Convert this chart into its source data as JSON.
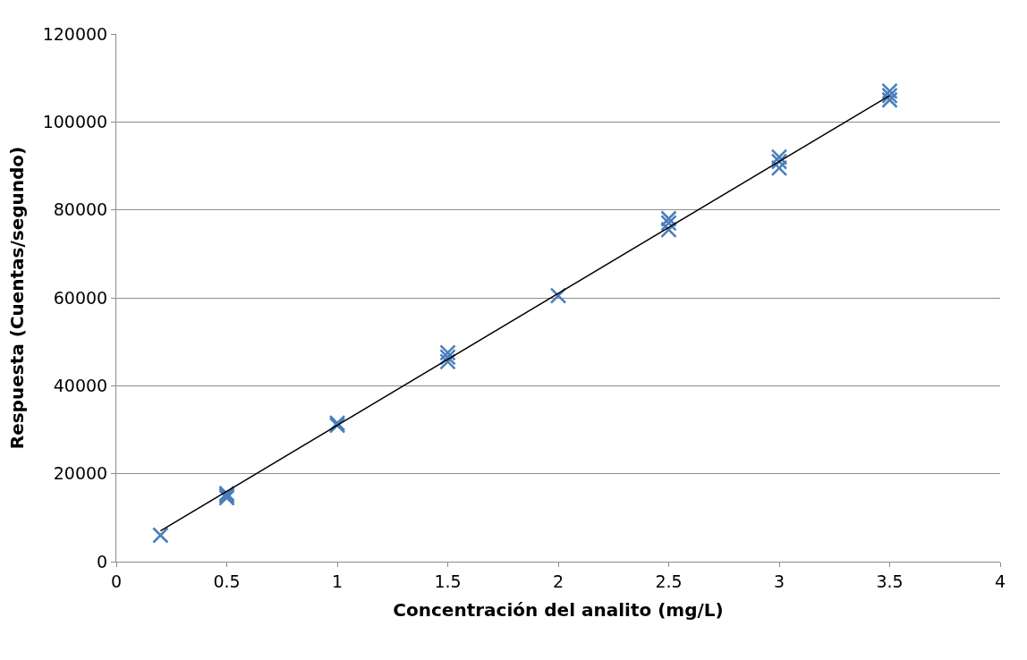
{
  "chart_data": {
    "type": "scatter",
    "xlabel": "Concentración del analito (mg/L)",
    "ylabel": "Respuesta (Cuentas/segundo)",
    "series": [
      {
        "color": "#4a7ebb",
        "marker": "cross",
        "x": [
          0.2,
          0.5,
          0.5,
          0.5,
          1,
          1,
          1.5,
          1.5,
          1.5,
          2,
          2.5,
          2.5,
          2.5,
          3,
          3,
          3,
          3.5,
          3.5,
          3.5
        ],
        "values": [
          6000,
          14500,
          15000,
          15500,
          31000,
          31500,
          45500,
          46500,
          47500,
          60500,
          75500,
          77000,
          78000,
          89500,
          91000,
          92000,
          105000,
          106000,
          107000
        ]
      },
      {
        "type": "line",
        "color": "#000000",
        "marker": "none",
        "x": [
          0.2,
          3.5
        ],
        "values": [
          7000,
          106000
        ]
      }
    ],
    "xlim": [
      0,
      4
    ],
    "xticks": [
      0,
      0.5,
      1,
      1.5,
      2,
      2.5,
      3,
      3.5,
      4
    ],
    "ylim": [
      0,
      120000
    ],
    "yticks": [
      0,
      20000,
      40000,
      60000,
      80000,
      100000,
      120000
    ],
    "grid": "y"
  }
}
